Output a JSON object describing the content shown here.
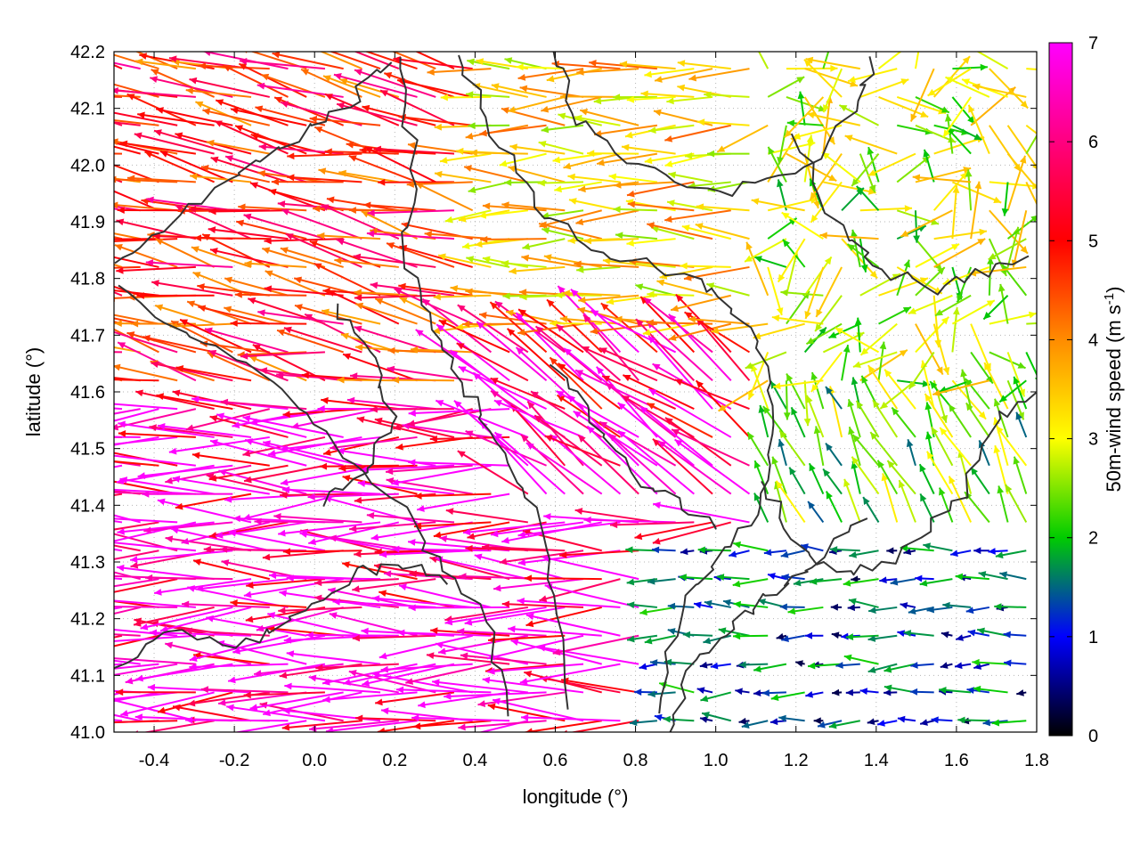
{
  "chart_data": {
    "type": "vector-field",
    "xlabel": "longitude (°)",
    "ylabel": "latitude (°)",
    "xlim": [
      -0.5,
      1.8
    ],
    "ylim": [
      41.0,
      42.2
    ],
    "x_ticks": [
      "-0.4",
      "-0.2",
      "0.0",
      "0.2",
      "0.4",
      "0.6",
      "0.8",
      "1.0",
      "1.2",
      "1.4",
      "1.6",
      "1.8"
    ],
    "y_ticks": [
      "41.0",
      "41.1",
      "41.2",
      "41.3",
      "41.4",
      "41.5",
      "41.6",
      "41.7",
      "41.8",
      "41.9",
      "42.0",
      "42.1",
      "42.2"
    ],
    "grid": true,
    "colorbar": {
      "label": "50m-wind speed (m s",
      "label_sup": "-1",
      "label_end": ")",
      "range": [
        0,
        7
      ],
      "ticks": [
        "0",
        "1",
        "2",
        "3",
        "4",
        "5",
        "6",
        "7"
      ],
      "colors": [
        "#000000",
        "#0000ff",
        "#00cc00",
        "#ffff00",
        "#ff8c00",
        "#ff0000",
        "#ff00ff"
      ]
    },
    "contour_color": "#333333",
    "wind_regions": [
      {
        "area": "southwest",
        "lon": [
          -0.5,
          0.5
        ],
        "lat": [
          41.0,
          41.6
        ],
        "speed_m_s": 6.8,
        "direction": "toward west"
      },
      {
        "area": "northwest",
        "lon": [
          -0.5,
          0.4
        ],
        "lat": [
          41.6,
          42.2
        ],
        "speed_m_s": 5.5,
        "direction": "toward west-northwest"
      },
      {
        "area": "north-central",
        "lon": [
          0.3,
          1.1
        ],
        "lat": [
          41.7,
          42.2
        ],
        "speed_m_s": 4.0,
        "direction": "toward west"
      },
      {
        "area": "central",
        "lon": [
          0.4,
          1.1
        ],
        "lat": [
          41.4,
          41.7
        ],
        "speed_m_s": 6.5,
        "direction": "toward northwest"
      },
      {
        "area": "northeast",
        "lon": [
          1.1,
          1.8
        ],
        "lat": [
          41.6,
          42.2
        ],
        "speed_m_s": 3.2,
        "direction": "variable"
      },
      {
        "area": "east-central",
        "lon": [
          1.1,
          1.8
        ],
        "lat": [
          41.35,
          41.6
        ],
        "speed_m_s": 2.7,
        "direction": "toward north-northwest"
      },
      {
        "area": "southeast",
        "lon": [
          0.85,
          1.8
        ],
        "lat": [
          41.0,
          41.35
        ],
        "speed_m_s": 1.4,
        "direction": "toward west"
      }
    ]
  }
}
